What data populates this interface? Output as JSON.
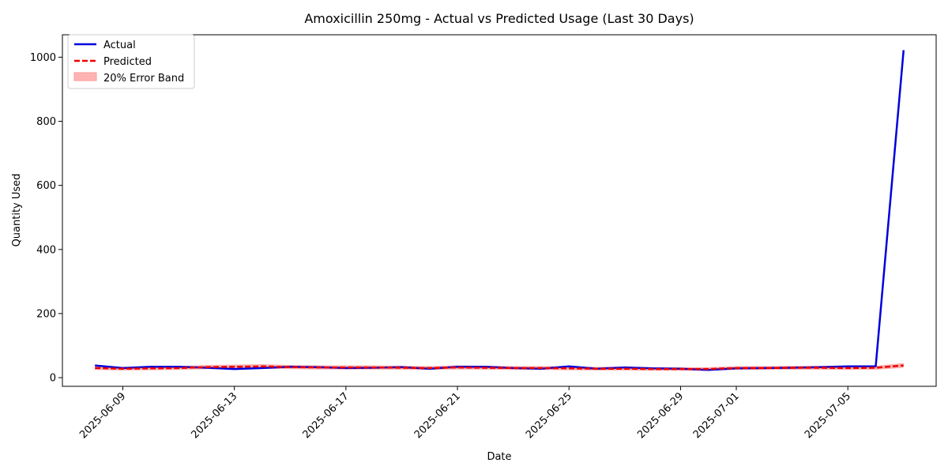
{
  "chart_data": {
    "type": "line",
    "title": "Amoxicillin 250mg - Actual vs Predicted Usage (Last 30 Days)",
    "xlabel": "Date",
    "ylabel": "Quantity Used",
    "ylim": [
      -27,
      1070
    ],
    "xlim": [
      "2025-06-06T20:00",
      "2025-07-08T04:00"
    ],
    "yticks": [
      0,
      200,
      400,
      600,
      800,
      1000
    ],
    "xticks": [
      "2025-06-09",
      "2025-06-13",
      "2025-06-17",
      "2025-06-21",
      "2025-06-25",
      "2025-06-29",
      "2025-07-01",
      "2025-07-05"
    ],
    "grid": false,
    "legend_position": "top-left",
    "x": [
      "2025-06-08",
      "2025-06-09",
      "2025-06-10",
      "2025-06-11",
      "2025-06-12",
      "2025-06-13",
      "2025-06-14",
      "2025-06-15",
      "2025-06-16",
      "2025-06-17",
      "2025-06-18",
      "2025-06-19",
      "2025-06-20",
      "2025-06-21",
      "2025-06-22",
      "2025-06-23",
      "2025-06-24",
      "2025-06-25",
      "2025-06-26",
      "2025-06-27",
      "2025-06-28",
      "2025-06-29",
      "2025-06-30",
      "2025-07-01",
      "2025-07-02",
      "2025-07-03",
      "2025-07-04",
      "2025-07-05",
      "2025-07-06",
      "2025-07-07"
    ],
    "series": [
      {
        "name": "Actual",
        "color": "#0000dd",
        "style": "solid",
        "values": [
          38,
          30,
          34,
          34,
          31,
          27,
          30,
          34,
          33,
          30,
          31,
          33,
          28,
          34,
          34,
          30,
          28,
          35,
          28,
          32,
          29,
          28,
          24,
          29,
          30,
          31,
          33,
          35,
          35,
          1022
        ]
      },
      {
        "name": "Predicted",
        "color": "#ee0000",
        "style": "dashed",
        "values": [
          30,
          28,
          29,
          30,
          33,
          34,
          35,
          33,
          32,
          32,
          32,
          31,
          30,
          32,
          31,
          30,
          30,
          29,
          28,
          28,
          27,
          27,
          27,
          30,
          30,
          31,
          31,
          30,
          31,
          38
        ]
      }
    ],
    "band": {
      "name": "20% Error Band",
      "color": "#ff9999",
      "relative_to": "Predicted",
      "fraction": 0.2
    }
  }
}
